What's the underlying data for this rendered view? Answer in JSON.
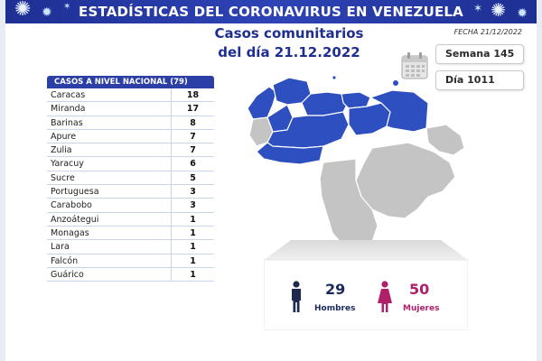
{
  "header": {
    "title": "ESTADÍSTICAS DEL CORONAVIRUS EN VENEZUELA",
    "date": "FECHA 21/12/2022"
  },
  "main": {
    "title_line1": "Casos comunitarios",
    "title_line2": "del día 21.12.2022"
  },
  "badges": {
    "week": "Semana 145",
    "day": "Día 1011"
  },
  "table": {
    "header": "CASOS A NIVEL NACIONAL  (79)",
    "rows": [
      {
        "state": "Caracas",
        "cases": "18"
      },
      {
        "state": "Miranda",
        "cases": "17"
      },
      {
        "state": "Barinas",
        "cases": "8"
      },
      {
        "state": "Apure",
        "cases": "7"
      },
      {
        "state": "Zulia",
        "cases": "7"
      },
      {
        "state": "Yaracuy",
        "cases": "6"
      },
      {
        "state": "Sucre",
        "cases": "5"
      },
      {
        "state": "Portuguesa",
        "cases": "3"
      },
      {
        "state": "Carabobo",
        "cases": "3"
      },
      {
        "state": "Anzoátegui",
        "cases": "1"
      },
      {
        "state": "Monagas",
        "cases": "1"
      },
      {
        "state": "Lara",
        "cases": "1"
      },
      {
        "state": "Falcón",
        "cases": "1"
      },
      {
        "state": "Guárico",
        "cases": "1"
      }
    ]
  },
  "stats": {
    "men_count": "29",
    "men_label": "Hombres",
    "women_count": "50",
    "women_label": "Mujeres"
  },
  "icons": {
    "banner": "virus-icon",
    "calendar": "calendar-icon",
    "men": "man-icon",
    "women": "woman-icon"
  },
  "colors": {
    "brand_blue": "#2b3fa6",
    "map_highlight": "#2d4fbf",
    "map_base": "#c4c4c4",
    "women_accent": "#b0206a"
  }
}
